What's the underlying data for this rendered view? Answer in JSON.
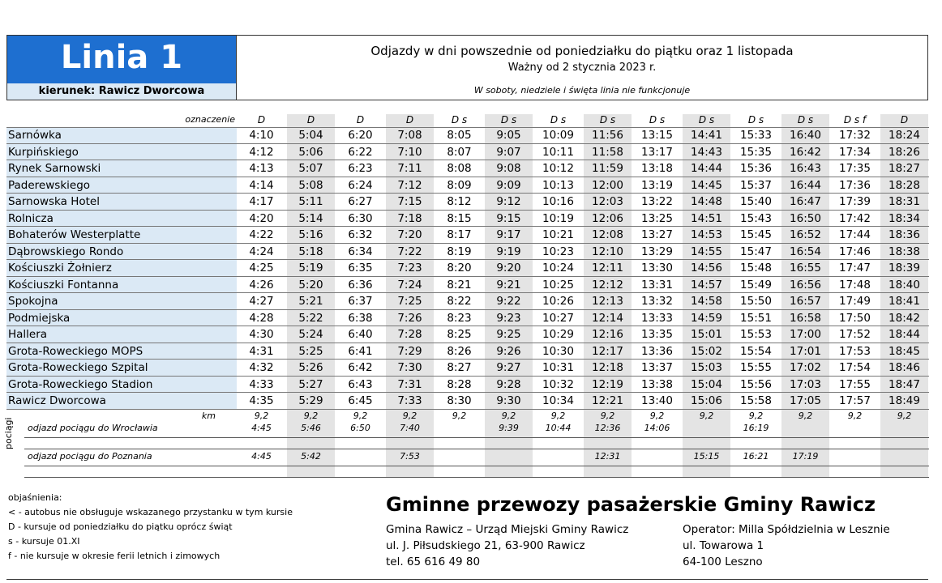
{
  "header": {
    "title": "Linia 1",
    "direction": "kierunek: Rawicz Dworcowa",
    "line1": "Odjazdy w dni powszednie od poniedziałku do piątku oraz 1 listopada",
    "line2": "Ważny od 2 stycznia 2023 r.",
    "note": "W soboty, niedziele i święta linia nie funkcjonuje"
  },
  "table": {
    "marker_label": "oznaczenie",
    "markers": [
      "D",
      "D",
      "D",
      "D",
      "D s",
      "D s",
      "D s",
      "D s",
      "D s",
      "D s",
      "D s",
      "D s",
      "D s f",
      "D"
    ],
    "stops": [
      {
        "name": "Sarnówka",
        "times": [
          "4:10",
          "5:04",
          "6:20",
          "7:08",
          "8:05",
          "9:05",
          "10:09",
          "11:56",
          "13:15",
          "14:41",
          "15:33",
          "16:40",
          "17:32",
          "18:24"
        ]
      },
      {
        "name": "Kurpińskiego",
        "times": [
          "4:12",
          "5:06",
          "6:22",
          "7:10",
          "8:07",
          "9:07",
          "10:11",
          "11:58",
          "13:17",
          "14:43",
          "15:35",
          "16:42",
          "17:34",
          "18:26"
        ]
      },
      {
        "name": "Rynek Sarnowski",
        "times": [
          "4:13",
          "5:07",
          "6:23",
          "7:11",
          "8:08",
          "9:08",
          "10:12",
          "11:59",
          "13:18",
          "14:44",
          "15:36",
          "16:43",
          "17:35",
          "18:27"
        ]
      },
      {
        "name": "Paderewskiego",
        "times": [
          "4:14",
          "5:08",
          "6:24",
          "7:12",
          "8:09",
          "9:09",
          "10:13",
          "12:00",
          "13:19",
          "14:45",
          "15:37",
          "16:44",
          "17:36",
          "18:28"
        ]
      },
      {
        "name": "Sarnowska Hotel",
        "times": [
          "4:17",
          "5:11",
          "6:27",
          "7:15",
          "8:12",
          "9:12",
          "10:16",
          "12:03",
          "13:22",
          "14:48",
          "15:40",
          "16:47",
          "17:39",
          "18:31"
        ]
      },
      {
        "name": "Rolnicza",
        "times": [
          "4:20",
          "5:14",
          "6:30",
          "7:18",
          "8:15",
          "9:15",
          "10:19",
          "12:06",
          "13:25",
          "14:51",
          "15:43",
          "16:50",
          "17:42",
          "18:34"
        ]
      },
      {
        "name": "Bohaterów Westerplatte",
        "times": [
          "4:22",
          "5:16",
          "6:32",
          "7:20",
          "8:17",
          "9:17",
          "10:21",
          "12:08",
          "13:27",
          "14:53",
          "15:45",
          "16:52",
          "17:44",
          "18:36"
        ]
      },
      {
        "name": "Dąbrowskiego Rondo",
        "times": [
          "4:24",
          "5:18",
          "6:34",
          "7:22",
          "8:19",
          "9:19",
          "10:23",
          "12:10",
          "13:29",
          "14:55",
          "15:47",
          "16:54",
          "17:46",
          "18:38"
        ]
      },
      {
        "name": "Kościuszki Żołnierz",
        "times": [
          "4:25",
          "5:19",
          "6:35",
          "7:23",
          "8:20",
          "9:20",
          "10:24",
          "12:11",
          "13:30",
          "14:56",
          "15:48",
          "16:55",
          "17:47",
          "18:39"
        ]
      },
      {
        "name": "Kościuszki Fontanna",
        "times": [
          "4:26",
          "5:20",
          "6:36",
          "7:24",
          "8:21",
          "9:21",
          "10:25",
          "12:12",
          "13:31",
          "14:57",
          "15:49",
          "16:56",
          "17:48",
          "18:40"
        ]
      },
      {
        "name": "Spokojna",
        "times": [
          "4:27",
          "5:21",
          "6:37",
          "7:25",
          "8:22",
          "9:22",
          "10:26",
          "12:13",
          "13:32",
          "14:58",
          "15:50",
          "16:57",
          "17:49",
          "18:41"
        ]
      },
      {
        "name": "Podmiejska",
        "times": [
          "4:28",
          "5:22",
          "6:38",
          "7:26",
          "8:23",
          "9:23",
          "10:27",
          "12:14",
          "13:33",
          "14:59",
          "15:51",
          "16:58",
          "17:50",
          "18:42"
        ]
      },
      {
        "name": "Hallera",
        "times": [
          "4:30",
          "5:24",
          "6:40",
          "7:28",
          "8:25",
          "9:25",
          "10:29",
          "12:16",
          "13:35",
          "15:01",
          "15:53",
          "17:00",
          "17:52",
          "18:44"
        ]
      },
      {
        "name": "Grota-Roweckiego MOPS",
        "times": [
          "4:31",
          "5:25",
          "6:41",
          "7:29",
          "8:26",
          "9:26",
          "10:30",
          "12:17",
          "13:36",
          "15:02",
          "15:54",
          "17:01",
          "17:53",
          "18:45"
        ]
      },
      {
        "name": "Grota-Roweckiego Szpital",
        "times": [
          "4:32",
          "5:26",
          "6:42",
          "7:30",
          "8:27",
          "9:27",
          "10:31",
          "12:18",
          "13:37",
          "15:03",
          "15:55",
          "17:02",
          "17:54",
          "18:46"
        ]
      },
      {
        "name": "Grota-Roweckiego Stadion",
        "times": [
          "4:33",
          "5:27",
          "6:43",
          "7:31",
          "8:28",
          "9:28",
          "10:32",
          "12:19",
          "13:38",
          "15:04",
          "15:56",
          "17:03",
          "17:55",
          "18:47"
        ]
      },
      {
        "name": "Rawicz Dworcowa",
        "times": [
          "4:35",
          "5:29",
          "6:45",
          "7:33",
          "8:30",
          "9:30",
          "10:34",
          "12:21",
          "13:40",
          "15:06",
          "15:58",
          "17:05",
          "17:57",
          "18:49"
        ]
      }
    ],
    "km_label": "km",
    "km": [
      "9,2",
      "9,2",
      "9,2",
      "9,2",
      "9,2",
      "9,2",
      "9,2",
      "9,2",
      "9,2",
      "9,2",
      "9,2",
      "9,2",
      "9,2",
      "9,2"
    ],
    "trains_label": "pociągi",
    "trains": [
      {
        "label": "odjazd pociągu do Wrocławia",
        "times": [
          "4:45",
          "5:46",
          "6:50",
          "7:40",
          null,
          "9:39",
          "10:44",
          "12:36",
          "14:06",
          null,
          "16:19",
          null,
          null,
          null
        ]
      },
      {
        "label": "odjazd pociągu do Poznania",
        "times": [
          "4:45",
          "5:42",
          null,
          "7:53",
          null,
          null,
          null,
          "12:31",
          null,
          "15:15",
          "16:21",
          "17:19",
          null,
          null
        ]
      }
    ]
  },
  "legend": {
    "title": "objaśnienia:",
    "items": [
      "< - autobus nie obsługuje wskazanego przystanku w tym kursie",
      "D - kursuje od poniedziałku do piątku oprócz świąt",
      "s - kursuje 01.XI",
      "f - nie kursuje w okresie ferii letnich i zimowych"
    ]
  },
  "footer": {
    "company": "Gminne przewozy pasażerskie Gminy Rawicz",
    "left": [
      "Gmina Rawicz – Urząd Miejski Gminy Rawicz",
      "ul. J. Piłsudskiego 21, 63-900 Rawicz",
      "tel. 65 616 49 80"
    ],
    "right": [
      "Operator: Milla Spółdzielnia w Lesznie",
      "ul. Towarowa 1",
      "64-100 Leszno"
    ]
  }
}
